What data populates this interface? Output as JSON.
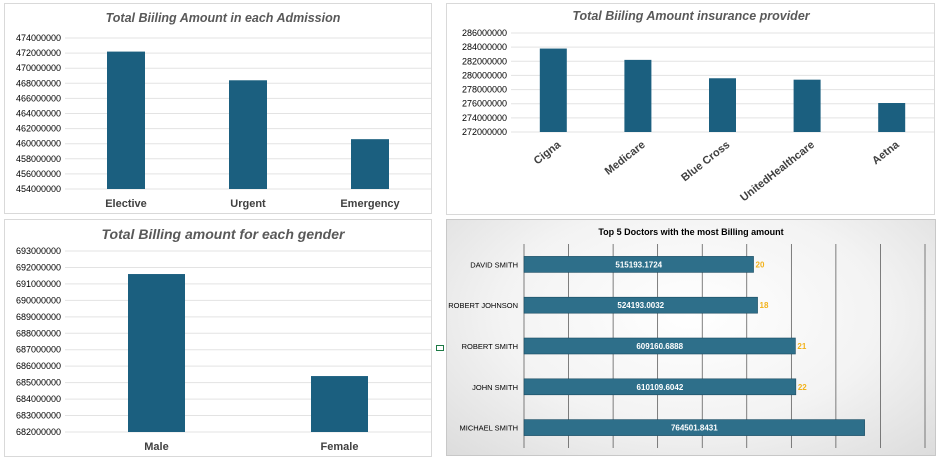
{
  "chart_data": [
    {
      "type": "bar",
      "title": "Total Biiling Amount in each Admission",
      "categories": [
        "Elective",
        "Urgent",
        "Emergency"
      ],
      "values": [
        472200000,
        468400000,
        460600000
      ],
      "ylim": [
        454000000,
        474000000
      ],
      "yticks": [
        "474000000",
        "472000000",
        "470000000",
        "468000000",
        "466000000",
        "464000000",
        "462000000",
        "460000000",
        "458000000",
        "456000000",
        "454000000"
      ],
      "grid": true,
      "color": "#1b5f7f"
    },
    {
      "type": "bar",
      "title": "Total Biiling Amount   insurance provider",
      "categories": [
        "Cigna",
        "Medicare",
        "Blue Cross",
        "UnitedHealthcare",
        "Aetna"
      ],
      "values": [
        283800000,
        282200000,
        279600000,
        279400000,
        276100000
      ],
      "ylim": [
        272000000,
        286000000
      ],
      "yticks": [
        "286000000",
        "284000000",
        "282000000",
        "280000000",
        "278000000",
        "276000000",
        "274000000",
        "272000000"
      ],
      "grid": true,
      "color": "#1b5f7f"
    },
    {
      "type": "bar",
      "title": "Total Billing amount for each gender",
      "categories": [
        "Male",
        "Female"
      ],
      "values": [
        691600000,
        685400000
      ],
      "ylim": [
        682000000,
        693000000
      ],
      "yticks": [
        "693000000",
        "692000000",
        "691000000",
        "690000000",
        "689000000",
        "688000000",
        "687000000",
        "686000000",
        "685000000",
        "684000000",
        "683000000",
        "682000000"
      ],
      "grid": true,
      "color": "#1b5f7f"
    },
    {
      "type": "bar",
      "orientation": "horizontal",
      "title": "Top 5 Doctors with the most Billing amount",
      "categories": [
        "DAVID SMITH",
        "ROBERT JOHNSON",
        "ROBERT SMITH",
        "JOHN SMITH",
        "MICHAEL SMITH"
      ],
      "values": [
        515193.1724,
        524193.0032,
        609160.6888,
        610109.6042,
        764501.8431
      ],
      "value_labels": [
        "515193.1724",
        "524193.0032",
        "609160.6888",
        "610109.6042",
        "764501.8431"
      ],
      "counts": [
        "20",
        "18",
        "21",
        "22",
        ""
      ],
      "xlim": [
        0,
        900000
      ],
      "grid": true,
      "color": "#2e6f8a",
      "count_color": "#f2b21b"
    }
  ],
  "colors": {
    "grid": "#e3e3e3",
    "bar": "#1b5f7f"
  }
}
